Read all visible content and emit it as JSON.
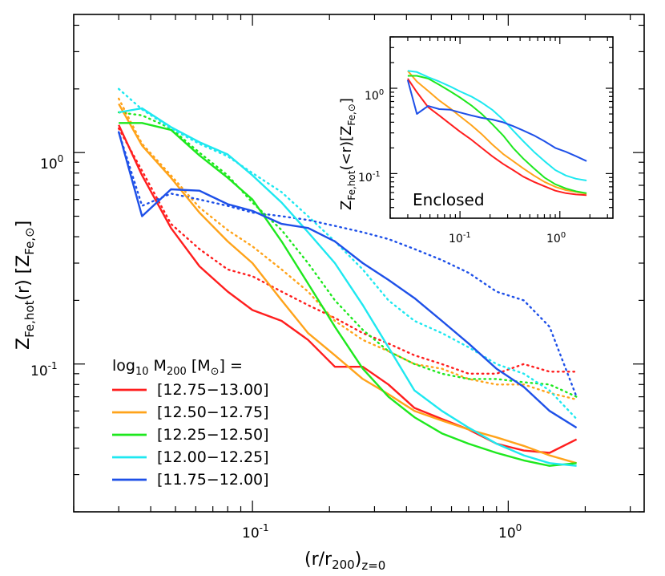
{
  "chart_data": [
    {
      "type": "line",
      "xlabel": "(r/r200)z=0",
      "ylabel": "ZFe,hot(r)  [ZFe,⊙]",
      "xscale": "log",
      "yscale": "log",
      "xlim": [
        0.02,
        3.4
      ],
      "ylim": [
        0.02,
        4.5
      ],
      "x_ticks": [
        "10-1",
        "100"
      ],
      "y_ticks": [
        "10-1",
        "100"
      ],
      "legend": {
        "title": "log10 M200 [M⊙] =",
        "placement": "lower-left",
        "entries": [
          "[12.75−13.00]",
          "[12.50−12.75]",
          "[12.25−12.50]",
          "[12.00−12.25]",
          "[11.75−12.00]"
        ]
      },
      "colors": [
        "#ff1e1e",
        "#ffa31a",
        "#1ee81e",
        "#1ee8f0",
        "#1e50e8"
      ],
      "x": [
        0.03,
        0.037,
        0.048,
        0.062,
        0.08,
        0.1,
        0.13,
        0.165,
        0.21,
        0.27,
        0.34,
        0.43,
        0.55,
        0.7,
        0.9,
        1.15,
        1.45,
        1.85
      ],
      "series": [
        {
          "name": "[12.75−13.00]",
          "style": "solid",
          "values": [
            1.35,
            0.78,
            0.44,
            0.29,
            0.22,
            0.18,
            0.16,
            0.13,
            0.097,
            0.097,
            0.08,
            0.062,
            0.055,
            0.049,
            0.042,
            0.039,
            0.038,
            0.044
          ]
        },
        {
          "name": "[12.50−12.75]",
          "style": "solid",
          "values": [
            1.7,
            1.08,
            0.76,
            0.52,
            0.38,
            0.3,
            0.2,
            0.14,
            0.11,
            0.085,
            0.072,
            0.06,
            0.054,
            0.049,
            0.045,
            0.041,
            0.037,
            0.034
          ]
        },
        {
          "name": "[12.25−12.50]",
          "style": "solid",
          "values": [
            1.38,
            1.38,
            1.28,
            0.97,
            0.76,
            0.6,
            0.38,
            0.24,
            0.15,
            0.095,
            0.07,
            0.056,
            0.047,
            0.042,
            0.038,
            0.035,
            0.033,
            0.034
          ]
        },
        {
          "name": "[12.00−12.25]",
          "style": "solid",
          "values": [
            1.55,
            1.62,
            1.32,
            1.12,
            0.98,
            0.78,
            0.58,
            0.42,
            0.3,
            0.19,
            0.12,
            0.075,
            0.06,
            0.05,
            0.042,
            0.037,
            0.034,
            0.033
          ]
        },
        {
          "name": "[11.75−12.00]",
          "style": "solid",
          "values": [
            1.25,
            0.5,
            0.67,
            0.66,
            0.57,
            0.53,
            0.46,
            0.44,
            0.38,
            0.3,
            0.25,
            0.205,
            0.16,
            0.125,
            0.095,
            0.078,
            0.06,
            0.05
          ]
        },
        {
          "name": "",
          "color_of": "[12.75−13.00]",
          "style": "dotted",
          "values": [
            1.3,
            0.82,
            0.46,
            0.35,
            0.28,
            0.26,
            0.22,
            0.19,
            0.165,
            0.14,
            0.125,
            0.11,
            0.1,
            0.09,
            0.09,
            0.1,
            0.092,
            0.092
          ]
        },
        {
          "name": "",
          "color_of": "[12.50−12.75]",
          "style": "dotted",
          "values": [
            1.8,
            1.1,
            0.78,
            0.55,
            0.43,
            0.36,
            0.28,
            0.22,
            0.16,
            0.13,
            0.115,
            0.1,
            0.095,
            0.085,
            0.08,
            0.08,
            0.073,
            0.068
          ]
        },
        {
          "name": "",
          "color_of": "[12.25−12.50]",
          "style": "dotted",
          "values": [
            1.55,
            1.5,
            1.3,
            1.0,
            0.78,
            0.58,
            0.43,
            0.3,
            0.2,
            0.145,
            0.115,
            0.1,
            0.09,
            0.085,
            0.085,
            0.082,
            0.08,
            0.07
          ]
        },
        {
          "name": "",
          "color_of": "[12.00−12.25]",
          "style": "dotted",
          "values": [
            2.0,
            1.6,
            1.3,
            1.1,
            0.96,
            0.8,
            0.65,
            0.5,
            0.38,
            0.28,
            0.2,
            0.16,
            0.14,
            0.12,
            0.1,
            0.09,
            0.075,
            0.055
          ]
        },
        {
          "name": "",
          "color_of": "[11.75−12.00]",
          "style": "dotted",
          "values": [
            1.25,
            0.56,
            0.64,
            0.6,
            0.56,
            0.52,
            0.5,
            0.48,
            0.45,
            0.42,
            0.39,
            0.35,
            0.31,
            0.27,
            0.22,
            0.2,
            0.15,
            0.07
          ]
        }
      ]
    },
    {
      "type": "line",
      "title": "Enclosed",
      "ylabel": "ZFe,hot(<r)[ZFe,⊙]",
      "xscale": "log",
      "yscale": "log",
      "xlim": [
        0.02,
        3.4
      ],
      "ylim": [
        0.03,
        4.0
      ],
      "x_ticks": [
        "10-1",
        "100"
      ],
      "y_ticks": [
        "10-1",
        "100"
      ],
      "x": [
        0.03,
        0.037,
        0.048,
        0.062,
        0.08,
        0.1,
        0.13,
        0.165,
        0.21,
        0.27,
        0.34,
        0.43,
        0.55,
        0.7,
        0.9,
        1.15,
        1.45,
        1.85
      ],
      "series": [
        {
          "name": "[12.75−13.00]",
          "values": [
            1.3,
            0.9,
            0.6,
            0.48,
            0.38,
            0.31,
            0.25,
            0.2,
            0.16,
            0.13,
            0.11,
            0.092,
            0.08,
            0.071,
            0.063,
            0.059,
            0.057,
            0.056
          ]
        },
        {
          "name": "[12.50−12.75]",
          "values": [
            1.6,
            1.2,
            0.93,
            0.72,
            0.58,
            0.47,
            0.37,
            0.29,
            0.22,
            0.17,
            0.14,
            0.115,
            0.095,
            0.08,
            0.07,
            0.064,
            0.061,
            0.058
          ]
        },
        {
          "name": "[12.25−12.50]",
          "values": [
            1.4,
            1.4,
            1.3,
            1.1,
            0.92,
            0.78,
            0.63,
            0.5,
            0.38,
            0.28,
            0.2,
            0.15,
            0.115,
            0.09,
            0.075,
            0.067,
            0.062,
            0.059
          ]
        },
        {
          "name": "[12.00−12.25]",
          "values": [
            1.6,
            1.55,
            1.35,
            1.2,
            1.05,
            0.92,
            0.8,
            0.68,
            0.56,
            0.43,
            0.32,
            0.24,
            0.18,
            0.14,
            0.11,
            0.095,
            0.087,
            0.083
          ]
        },
        {
          "name": "[11.75−12.00]",
          "values": [
            1.25,
            0.5,
            0.62,
            0.57,
            0.56,
            0.52,
            0.48,
            0.45,
            0.43,
            0.4,
            0.36,
            0.32,
            0.28,
            0.24,
            0.2,
            0.18,
            0.16,
            0.14
          ]
        }
      ]
    }
  ]
}
